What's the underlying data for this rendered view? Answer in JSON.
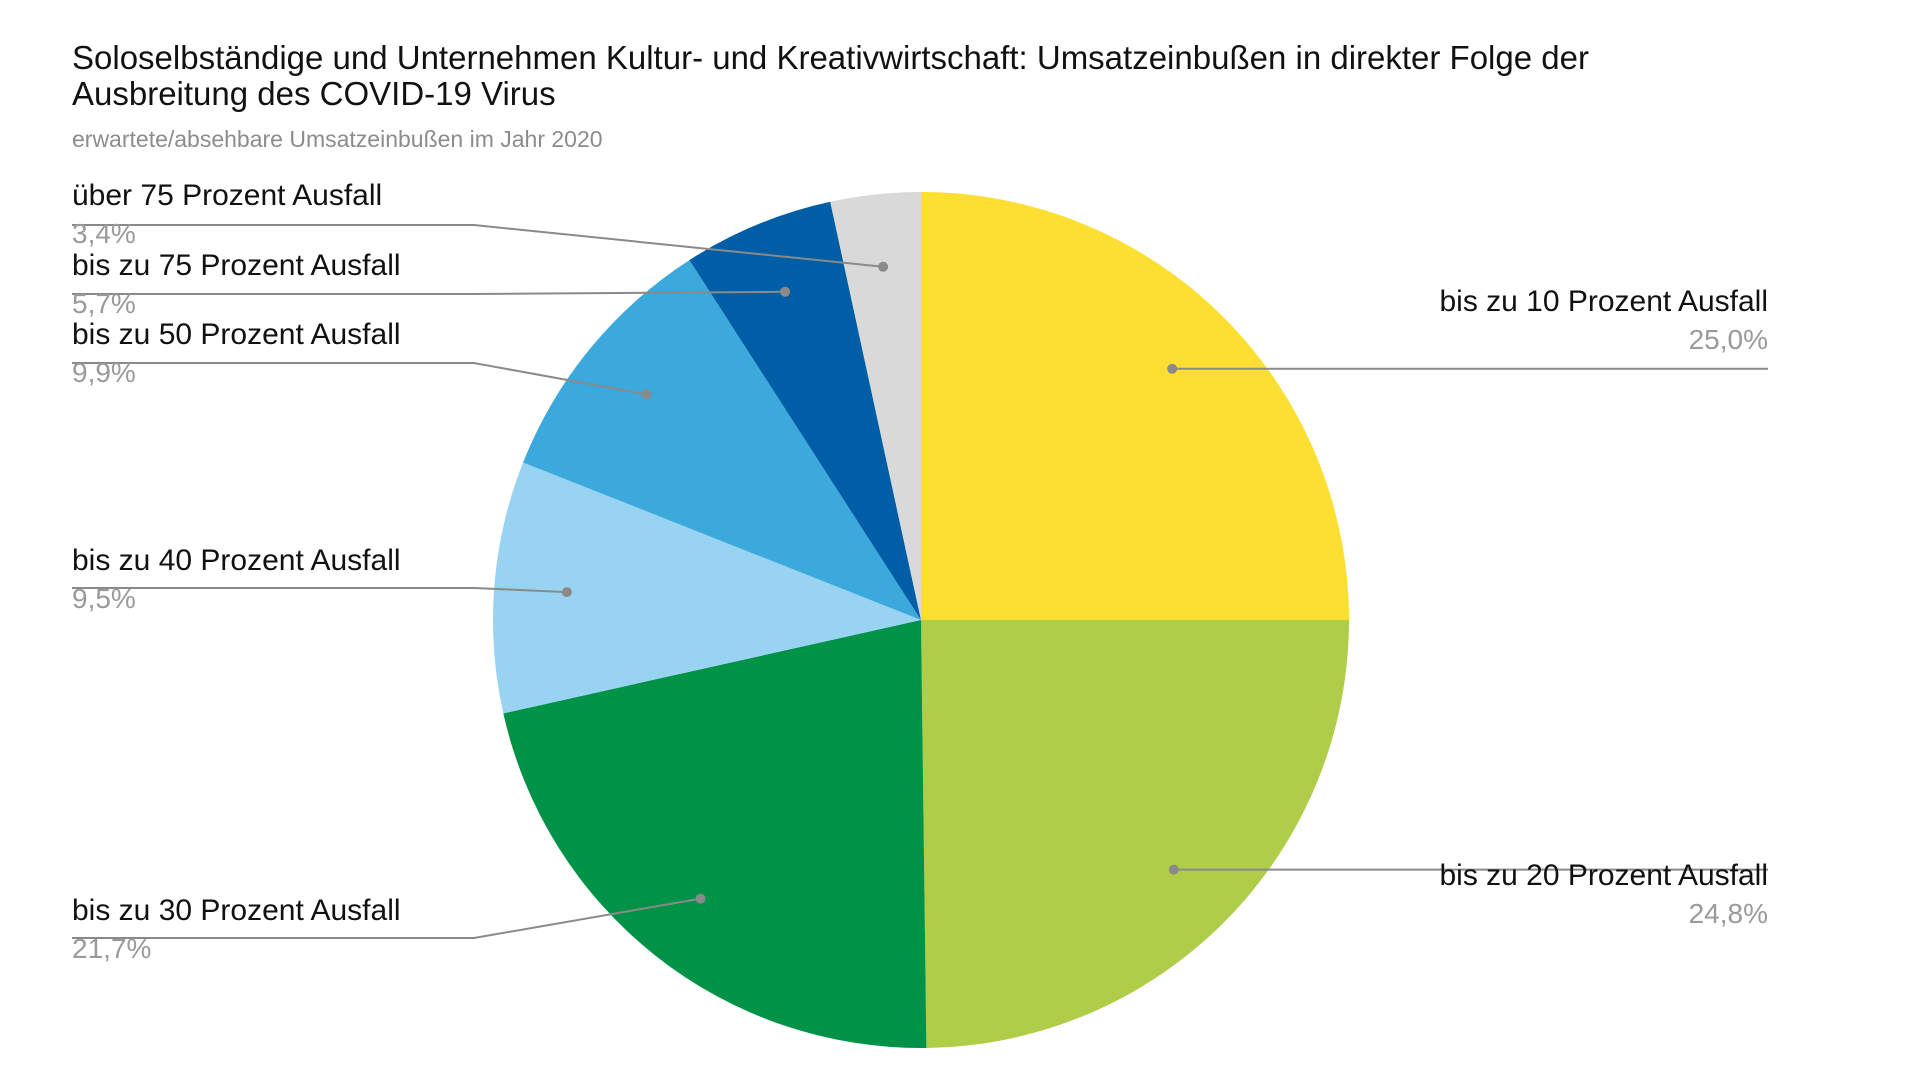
{
  "chart_data": {
    "type": "pie",
    "title": "Soloselbständige und Unternehmen Kultur- und Kreativwirtschaft: Umsatzeinbußen in direkter Folge der Ausbreitung des COVID-19 Virus",
    "subtitle": "erwartete/absehbare Umsatzeinbußen im Jahr 2020",
    "start_angle_deg": 0,
    "direction": "clockwise",
    "slices": [
      {
        "label": "bis zu 10 Prozent Ausfall",
        "value": 25.0,
        "value_label": "25,0%",
        "color": "#fddf32",
        "label_side": "right"
      },
      {
        "label": "bis zu 20 Prozent Ausfall",
        "value": 24.8,
        "value_label": "24,8%",
        "color": "#afcd48",
        "label_side": "right"
      },
      {
        "label": "bis zu 30 Prozent Ausfall",
        "value": 21.7,
        "value_label": "21,7%",
        "color": "#009246",
        "label_side": "left"
      },
      {
        "label": "bis zu 40 Prozent Ausfall",
        "value": 9.5,
        "value_label": "9,5%",
        "color": "#98d4f1",
        "label_side": "left"
      },
      {
        "label": "bis zu 50 Prozent Ausfall",
        "value": 9.9,
        "value_label": "9,9%",
        "color": "#3ca9dd",
        "label_side": "left"
      },
      {
        "label": "bis zu 75 Prozent Ausfall",
        "value": 5.7,
        "value_label": "5,7%",
        "color": "#005ea6",
        "label_side": "left"
      },
      {
        "label": "über 75 Prozent Ausfall",
        "value": 3.4,
        "value_label": "3,4%",
        "color": "#d9d9d9",
        "label_side": "left"
      }
    ]
  }
}
